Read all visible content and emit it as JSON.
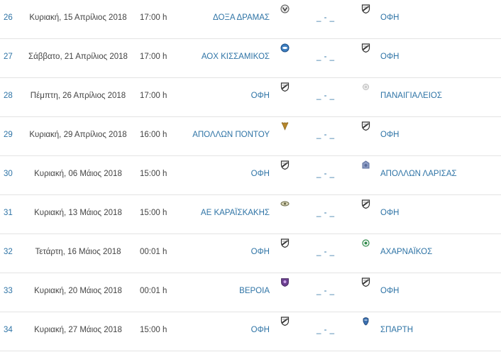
{
  "fixtures": [
    {
      "round": "26",
      "date": "Κυριακή, 15 Απρίλιος 2018",
      "time": "17:00 h",
      "home": "ΔΟΞΑ ΔΡΑΜΑΣ",
      "home_logo": "doxa-dramas-crest-icon",
      "score": "_ - _",
      "away": "ΟΦΗ",
      "away_logo": "ofi-crest-icon"
    },
    {
      "round": "27",
      "date": "Σάββατο, 21 Απρίλιος 2018",
      "time": "17:00 h",
      "home": "ΑΟΧ ΚΙΣΣΑΜΙΚΟΣ",
      "home_logo": "kissamikos-crest-icon",
      "score": "_ - _",
      "away": "ΟΦΗ",
      "away_logo": "ofi-crest-icon"
    },
    {
      "round": "28",
      "date": "Πέμπτη, 26 Απρίλιος 2018",
      "time": "17:00 h",
      "home": "ΟΦΗ",
      "home_logo": "ofi-crest-icon",
      "score": "_ - _",
      "away": "ΠΑΝΑΙΓΙΑΛΕΙΟΣ",
      "away_logo": "panaigialeios-crest-icon"
    },
    {
      "round": "29",
      "date": "Κυριακή, 29 Απρίλιος 2018",
      "time": "16:00 h",
      "home": "ΑΠΟΛΛΩΝ ΠΟΝΤΟΥ",
      "home_logo": "apollon-pontou-crest-icon",
      "score": "_ - _",
      "away": "ΟΦΗ",
      "away_logo": "ofi-crest-icon"
    },
    {
      "round": "30",
      "date": "Κυριακή, 06 Μάιος 2018",
      "time": "15:00 h",
      "home": "ΟΦΗ",
      "home_logo": "ofi-crest-icon",
      "score": "_ - _",
      "away": "ΑΠΟΛΛΩΝ ΛΑΡΙΣΑΣ",
      "away_logo": "apollon-larisas-crest-icon"
    },
    {
      "round": "31",
      "date": "Κυριακή, 13 Μάιος 2018",
      "time": "15:00 h",
      "home": "ΑΕ ΚΑΡΑΪΣΚΑΚΗΣ",
      "home_logo": "karaiskakis-crest-icon",
      "score": "_ - _",
      "away": "ΟΦΗ",
      "away_logo": "ofi-crest-icon"
    },
    {
      "round": "32",
      "date": "Τετάρτη, 16 Μάιος 2018",
      "time": "00:01 h",
      "home": "ΟΦΗ",
      "home_logo": "ofi-crest-icon",
      "score": "_ - _",
      "away": "ΑΧΑΡΝΑΪΚΟΣ",
      "away_logo": "acharnaikos-crest-icon"
    },
    {
      "round": "33",
      "date": "Κυριακή, 20 Μάιος 2018",
      "time": "00:01 h",
      "home": "ΒΕΡΟΙΑ",
      "home_logo": "veria-crest-icon",
      "score": "_ - _",
      "away": "ΟΦΗ",
      "away_logo": "ofi-crest-icon"
    },
    {
      "round": "34",
      "date": "Κυριακή, 27 Μάιος 2018",
      "time": "15:00 h",
      "home": "ΟΦΗ",
      "home_logo": "ofi-crest-icon",
      "score": "_ - _",
      "away": "ΣΠΑΡΤΗ",
      "away_logo": "sparti-crest-icon"
    }
  ],
  "logo_colors": {
    "ofi": "#333333",
    "doxa": "#555555",
    "kissamikos": "#3d7fc1",
    "panaigialeios": "#b9b9b9",
    "apollon_pontou": "#b8872a",
    "apollon_larisas": "#5a6c9a",
    "karaiskakis": "#6a6a4a",
    "acharnaikos": "#2f8a4a",
    "veria": "#6a3f8e",
    "sparti": "#3a6fb0"
  }
}
